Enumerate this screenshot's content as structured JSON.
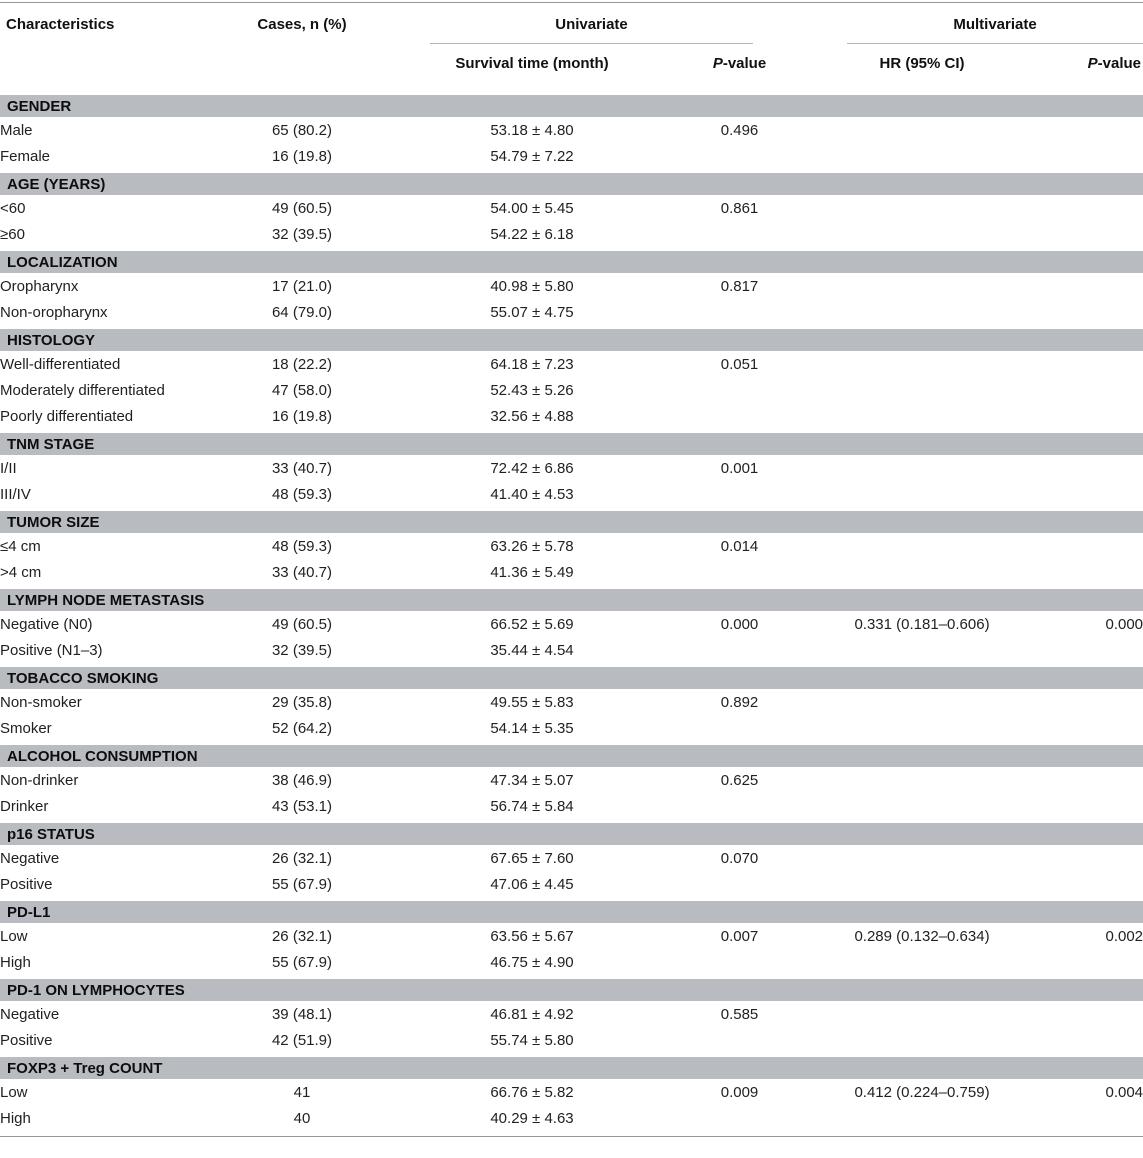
{
  "colors": {
    "section_band": "#b8bbbf",
    "rule_dark": "#97979b",
    "rule_light": "#b3b3b6"
  },
  "table": {
    "col_headers": {
      "characteristics": "Characteristics",
      "cases": "Cases, n (%)",
      "univariate": "Univariate",
      "multivariate": "Multivariate",
      "survival": "Survival time (month)",
      "hr": "HR (95% CI)",
      "p_italic": "P",
      "p_rest": "-value"
    },
    "sections": [
      {
        "title": "GENDER",
        "rows": [
          {
            "label": "Male",
            "cases": "65 (80.2)",
            "survival": "53.18 ± 4.80",
            "p_uni": "0.496",
            "hr": "",
            "p_multi": ""
          },
          {
            "label": "Female",
            "cases": "16 (19.8)",
            "survival": "54.79 ± 7.22",
            "p_uni": "",
            "hr": "",
            "p_multi": ""
          }
        ]
      },
      {
        "title": "AGE (YEARS)",
        "rows": [
          {
            "label": "<60",
            "cases": "49 (60.5)",
            "survival": "54.00 ± 5.45",
            "p_uni": "0.861",
            "hr": "",
            "p_multi": ""
          },
          {
            "label": "≥60",
            "cases": "32 (39.5)",
            "survival": "54.22 ± 6.18",
            "p_uni": "",
            "hr": "",
            "p_multi": ""
          }
        ]
      },
      {
        "title": "LOCALIZATION",
        "rows": [
          {
            "label": "Oropharynx",
            "cases": "17 (21.0)",
            "survival": "40.98 ± 5.80",
            "p_uni": "0.817",
            "hr": "",
            "p_multi": ""
          },
          {
            "label": "Non-oropharynx",
            "cases": "64 (79.0)",
            "survival": "55.07 ± 4.75",
            "p_uni": "",
            "hr": "",
            "p_multi": ""
          }
        ]
      },
      {
        "title": "HISTOLOGY",
        "rows": [
          {
            "label": "Well-differentiated",
            "cases": "18 (22.2)",
            "survival": "64.18 ± 7.23",
            "p_uni": "0.051",
            "hr": "",
            "p_multi": ""
          },
          {
            "label": "Moderately differentiated",
            "cases": "47 (58.0)",
            "survival": "52.43 ± 5.26",
            "p_uni": "",
            "hr": "",
            "p_multi": ""
          },
          {
            "label": "Poorly differentiated",
            "cases": "16 (19.8)",
            "survival": "32.56 ± 4.88",
            "p_uni": "",
            "hr": "",
            "p_multi": ""
          }
        ]
      },
      {
        "title": "TNM STAGE",
        "rows": [
          {
            "label": "I/II",
            "cases": "33 (40.7)",
            "survival": "72.42 ± 6.86",
            "p_uni": "0.001",
            "hr": "",
            "p_multi": ""
          },
          {
            "label": "III/IV",
            "cases": "48 (59.3)",
            "survival": "41.40 ± 4.53",
            "p_uni": "",
            "hr": "",
            "p_multi": ""
          }
        ]
      },
      {
        "title": "TUMOR SIZE",
        "rows": [
          {
            "label": "≤4 cm",
            "cases": "48 (59.3)",
            "survival": "63.26 ± 5.78",
            "p_uni": "0.014",
            "hr": "",
            "p_multi": ""
          },
          {
            "label": ">4 cm",
            "cases": "33 (40.7)",
            "survival": "41.36 ± 5.49",
            "p_uni": "",
            "hr": "",
            "p_multi": ""
          }
        ]
      },
      {
        "title": "LYMPH NODE METASTASIS",
        "rows": [
          {
            "label": "Negative (N0)",
            "cases": "49 (60.5)",
            "survival": "66.52 ± 5.69",
            "p_uni": "0.000",
            "hr": "0.331 (0.181–0.606)",
            "p_multi": "0.000"
          },
          {
            "label": "Positive (N1–3)",
            "cases": "32 (39.5)",
            "survival": "35.44 ± 4.54",
            "p_uni": "",
            "hr": "",
            "p_multi": ""
          }
        ]
      },
      {
        "title": "TOBACCO SMOKING",
        "rows": [
          {
            "label": "Non-smoker",
            "cases": "29 (35.8)",
            "survival": "49.55 ± 5.83",
            "p_uni": "0.892",
            "hr": "",
            "p_multi": ""
          },
          {
            "label": "Smoker",
            "cases": "52 (64.2)",
            "survival": "54.14 ± 5.35",
            "p_uni": "",
            "hr": "",
            "p_multi": ""
          }
        ]
      },
      {
        "title": "ALCOHOL CONSUMPTION",
        "rows": [
          {
            "label": "Non-drinker",
            "cases": "38 (46.9)",
            "survival": "47.34 ± 5.07",
            "p_uni": "0.625",
            "hr": "",
            "p_multi": ""
          },
          {
            "label": "Drinker",
            "cases": "43 (53.1)",
            "survival": "56.74 ± 5.84",
            "p_uni": "",
            "hr": "",
            "p_multi": ""
          }
        ]
      },
      {
        "title": "p16 STATUS",
        "rows": [
          {
            "label": "Negative",
            "cases": "26 (32.1)",
            "survival": "67.65 ± 7.60",
            "p_uni": "0.070",
            "hr": "",
            "p_multi": ""
          },
          {
            "label": "Positive",
            "cases": "55 (67.9)",
            "survival": "47.06 ± 4.45",
            "p_uni": "",
            "hr": "",
            "p_multi": ""
          }
        ]
      },
      {
        "title": "PD-L1",
        "rows": [
          {
            "label": "Low",
            "cases": "26 (32.1)",
            "survival": "63.56 ± 5.67",
            "p_uni": "0.007",
            "hr": "0.289 (0.132–0.634)",
            "p_multi": "0.002"
          },
          {
            "label": "High",
            "cases": "55 (67.9)",
            "survival": "46.75 ± 4.90",
            "p_uni": "",
            "hr": "",
            "p_multi": ""
          }
        ]
      },
      {
        "title": "PD-1 ON LYMPHOCYTES",
        "rows": [
          {
            "label": "Negative",
            "cases": "39 (48.1)",
            "survival": "46.81 ± 4.92",
            "p_uni": "0.585",
            "hr": "",
            "p_multi": ""
          },
          {
            "label": "Positive",
            "cases": "42 (51.9)",
            "survival": "55.74 ± 5.80",
            "p_uni": "",
            "hr": "",
            "p_multi": ""
          }
        ]
      },
      {
        "title": "FOXP3 + Treg COUNT",
        "rows": [
          {
            "label": "Low",
            "cases": "41",
            "survival": "66.76 ± 5.82",
            "p_uni": "0.009",
            "hr": "0.412 (0.224–0.759)",
            "p_multi": "0.004"
          },
          {
            "label": "High",
            "cases": "40",
            "survival": "40.29 ± 4.63",
            "p_uni": "",
            "hr": "",
            "p_multi": ""
          }
        ]
      }
    ]
  }
}
